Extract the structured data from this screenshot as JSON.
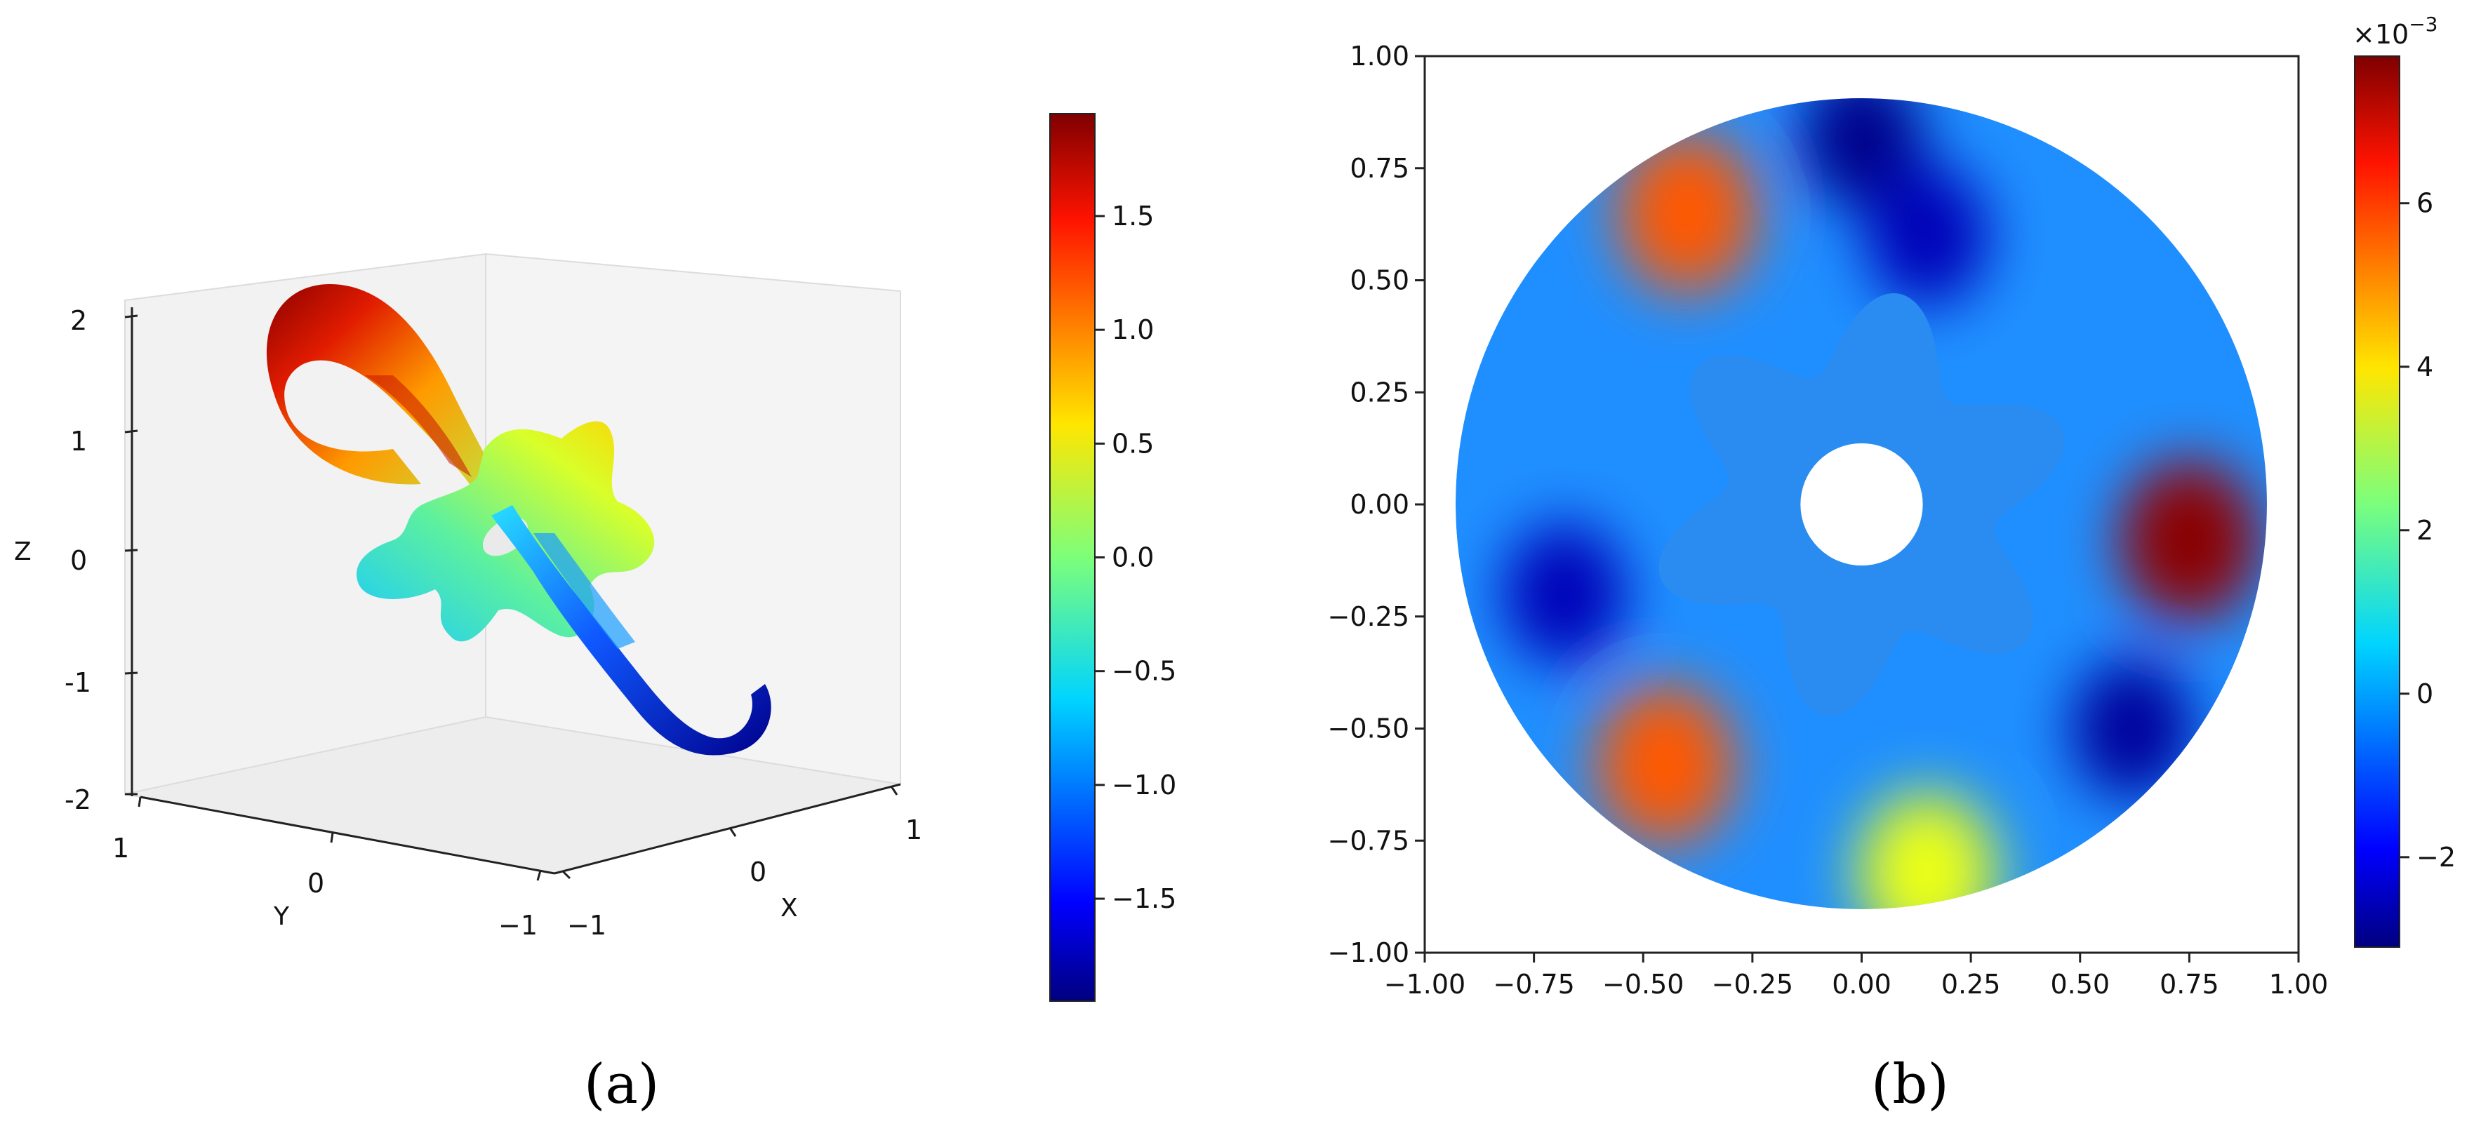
{
  "chart_data": [
    {
      "type": "surface3d",
      "panel_label": "a",
      "axes": {
        "x": {
          "label": "X",
          "ticks": [
            -1,
            0,
            1
          ],
          "range": [
            -1,
            1
          ]
        },
        "y": {
          "label": "Y",
          "ticks": [
            1,
            0,
            -1
          ],
          "range": [
            -1,
            1
          ]
        },
        "z": {
          "label": "Z",
          "ticks": [
            2,
            1,
            0,
            -1,
            -2
          ],
          "range": [
            -2,
            2
          ]
        }
      },
      "surface_value_range": [
        -1.95,
        1.95
      ],
      "colorbar": {
        "ticks": [
          1.5,
          1.0,
          0.5,
          0.0,
          -0.5,
          -1.0,
          -1.5
        ],
        "tick_labels": [
          "1.5",
          "1.0",
          "0.5",
          "0.0",
          "−0.5",
          "−1.0",
          "−1.5"
        ],
        "range": [
          -1.95,
          1.95
        ],
        "colormap": "jet"
      }
    },
    {
      "type": "heatmap",
      "panel_label": "b",
      "xlim": [
        -1.0,
        1.0
      ],
      "ylim": [
        -1.0,
        1.0
      ],
      "x_ticks": [
        "−1.00",
        "−0.75",
        "−0.50",
        "−0.25",
        "0.00",
        "0.25",
        "0.50",
        "0.75",
        "1.00"
      ],
      "y_ticks": [
        "1.00",
        "0.75",
        "0.50",
        "0.25",
        "0.00",
        "−0.25",
        "−0.50",
        "−0.75",
        "−1.00"
      ],
      "domain": {
        "outer_radius": 0.92,
        "inner_radius": 0.14,
        "gear_teeth": 6
      },
      "hotspots": [
        {
          "x": 0.75,
          "y": -0.08,
          "value": 7.5
        },
        {
          "x": -0.4,
          "y": 0.65,
          "value": 5.5
        },
        {
          "x": -0.45,
          "y": -0.58,
          "value": 5.5
        },
        {
          "x": 0.15,
          "y": -0.82,
          "value": 3.5
        },
        {
          "x": 0.0,
          "y": 0.82,
          "value": -3.0
        },
        {
          "x": 0.15,
          "y": 0.6,
          "value": -2.5
        },
        {
          "x": -0.68,
          "y": -0.2,
          "value": -2.5
        },
        {
          "x": 0.62,
          "y": -0.5,
          "value": -2.8
        }
      ],
      "colorbar": {
        "multiplier_label": "×10",
        "multiplier_exponent": "−3",
        "ticks": [
          6,
          4,
          2,
          0,
          -2
        ],
        "tick_labels": [
          "6",
          "4",
          "2",
          "0",
          "−2"
        ],
        "range": [
          -3.1,
          7.8
        ],
        "colormap": "jet"
      }
    }
  ],
  "figure": {
    "caption_a": "(a)",
    "caption_b": "(b)"
  }
}
